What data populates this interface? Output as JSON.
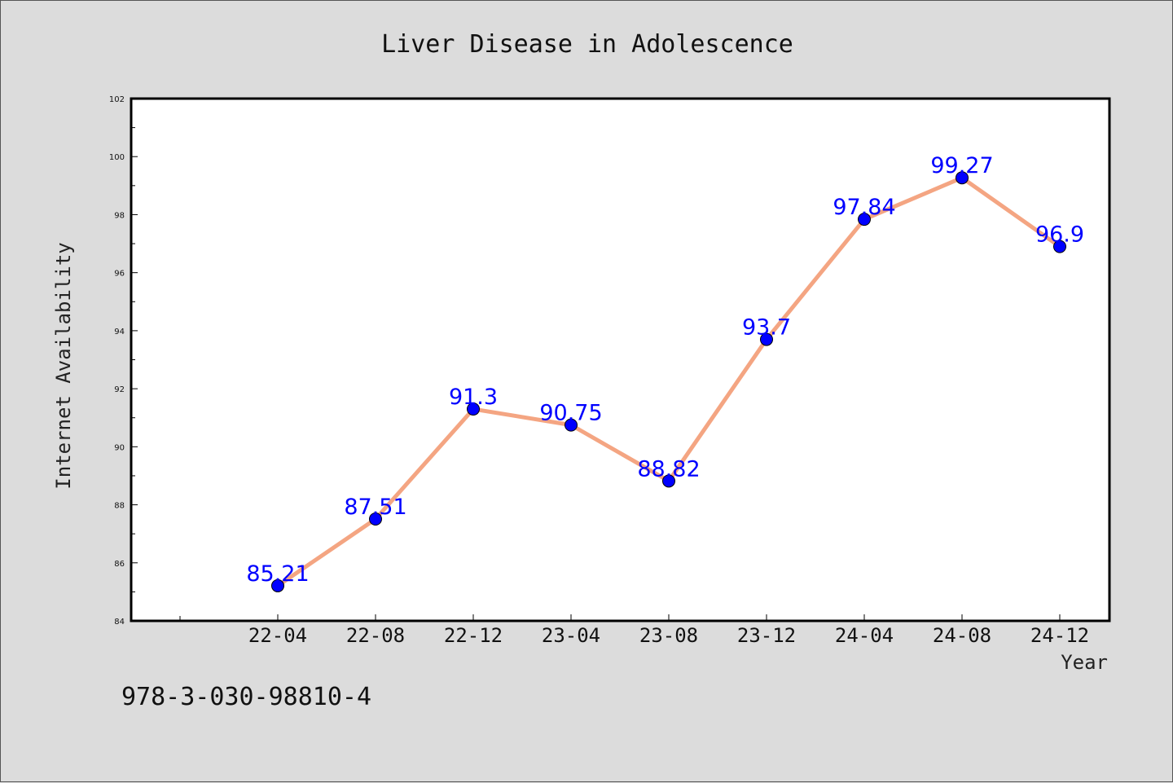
{
  "chart_data": {
    "type": "line",
    "title": "Liver Disease in Adolescence",
    "xlabel": "Year",
    "ylabel": "Internet Availability",
    "categories": [
      "22-04",
      "22-08",
      "22-12",
      "23-04",
      "23-08",
      "23-12",
      "24-04",
      "24-08",
      "24-12"
    ],
    "series": [
      {
        "values": [
          85.21,
          87.51,
          91.3,
          90.75,
          88.82,
          93.7,
          97.84,
          99.27,
          96.9
        ],
        "color": "#f4a582",
        "marker_color": "#0000ff"
      }
    ],
    "data_labels": [
      "85.21",
      "87.51",
      "91.3",
      "90.75",
      "88.82",
      "93.7",
      "97.84",
      "99.27",
      "96.9"
    ],
    "ylim": [
      84,
      102
    ],
    "yticks": [
      "84",
      "86",
      "88",
      "90",
      "92",
      "94",
      "96",
      "98",
      "100",
      "102"
    ],
    "grid": false,
    "legend": "none"
  },
  "footer": {
    "isbn": "978-3-030-98810-4"
  },
  "colors": {
    "background": "#dcdcdc",
    "plot_background": "#ffffff",
    "line": "#f4a582",
    "marker": "#0000ff",
    "data_label": "#0000ff"
  }
}
